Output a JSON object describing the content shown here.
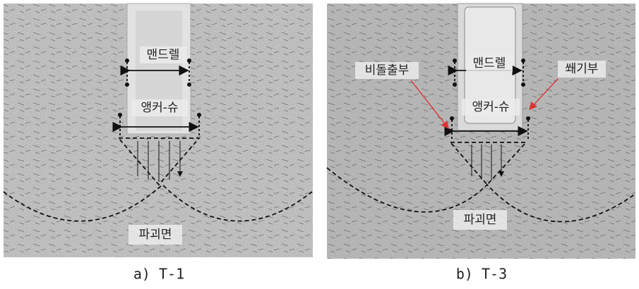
{
  "panels": [
    {
      "labels": {
        "mandrel": "맨드렐",
        "anchor_shoe": "앵커-슈",
        "failure_surface": "파괴면"
      },
      "caption": "a) T-1"
    },
    {
      "labels": {
        "non_protrusion": "비돌출부",
        "wedge": "쐐기부",
        "mandrel": "맨드렐",
        "anchor_shoe": "앵커-슈",
        "failure_surface": "파괴면"
      },
      "caption": "b) T-3"
    }
  ]
}
